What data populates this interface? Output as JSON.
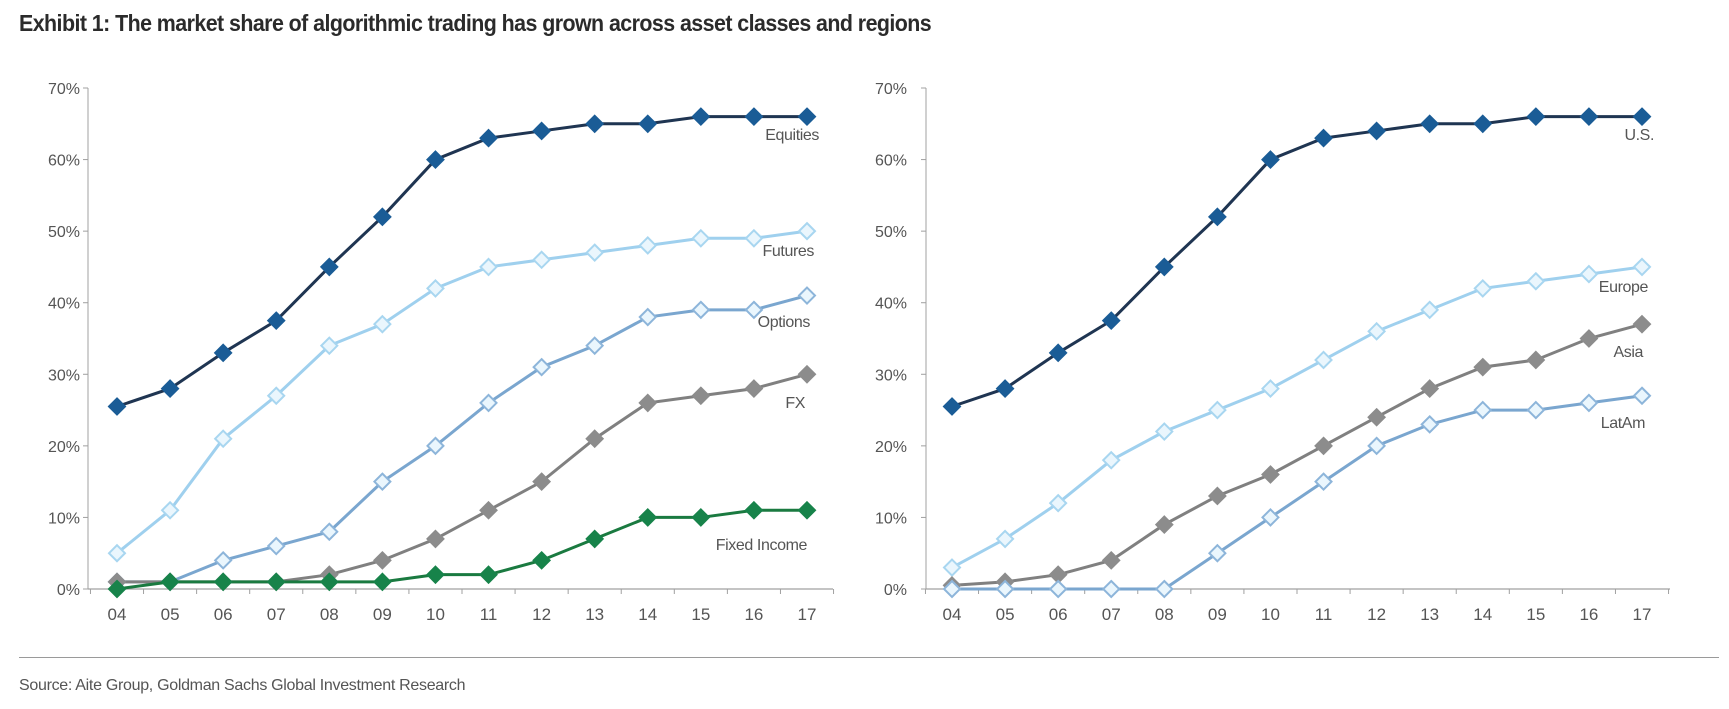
{
  "title": "Exhibit 1: The market share of algorithmic trading has grown across asset classes and regions",
  "source": "Source: Aite Group, Goldman Sachs Global Investment Research",
  "chart_data": [
    {
      "type": "line",
      "title": "",
      "xlabel": "",
      "ylabel": "",
      "categories": [
        "04",
        "05",
        "06",
        "07",
        "08",
        "09",
        "10",
        "11",
        "12",
        "13",
        "14",
        "15",
        "16",
        "17"
      ],
      "ylim": [
        0,
        70
      ],
      "yticks": [
        "0%",
        "10%",
        "20%",
        "30%",
        "40%",
        "50%",
        "60%",
        "70%"
      ],
      "grid": false,
      "series": [
        {
          "name": "Equities",
          "color": "#1a5c96",
          "line": "#1f3552",
          "marker": "filled",
          "values": [
            25.5,
            28,
            33,
            37.5,
            45,
            52,
            60,
            63,
            64,
            65,
            65,
            66,
            66,
            66
          ]
        },
        {
          "name": "Futures",
          "color": "#a8d6f0",
          "line": "#9fd0ee",
          "marker": "hollow",
          "values": [
            5,
            11,
            21,
            27,
            34,
            37,
            42,
            45,
            46,
            47,
            48,
            49,
            49,
            50
          ]
        },
        {
          "name": "Options",
          "color": "#8db5da",
          "line": "#7aa6cf",
          "marker": "hollow",
          "values": [
            1,
            1,
            4,
            6,
            8,
            15,
            20,
            26,
            31,
            34,
            38,
            39,
            39,
            41
          ]
        },
        {
          "name": "FX",
          "color": "#8c8c8c",
          "line": "#808080",
          "marker": "filled",
          "values": [
            1,
            1,
            1,
            1,
            2,
            4,
            7,
            11,
            15,
            21,
            26,
            27,
            28,
            30
          ]
        },
        {
          "name": "Fixed Income",
          "color": "#17834a",
          "line": "#1a7a40",
          "marker": "filled",
          "values": [
            0,
            1,
            1,
            1,
            1,
            1,
            2,
            2,
            4,
            7,
            10,
            10,
            11,
            11
          ]
        }
      ]
    },
    {
      "type": "line",
      "title": "",
      "xlabel": "",
      "ylabel": "",
      "categories": [
        "04",
        "05",
        "06",
        "07",
        "08",
        "09",
        "10",
        "11",
        "12",
        "13",
        "14",
        "15",
        "16",
        "17"
      ],
      "ylim": [
        0,
        70
      ],
      "yticks": [
        "0%",
        "10%",
        "20%",
        "30%",
        "40%",
        "50%",
        "60%",
        "70%"
      ],
      "grid": false,
      "series": [
        {
          "name": "U.S.",
          "color": "#1a5c96",
          "line": "#1f3552",
          "marker": "filled",
          "values": [
            25.5,
            28,
            33,
            37.5,
            45,
            52,
            60,
            63,
            64,
            65,
            65,
            66,
            66,
            66
          ]
        },
        {
          "name": "Europe",
          "color": "#a8d6f0",
          "line": "#9fd0ee",
          "marker": "hollow",
          "values": [
            3,
            7,
            12,
            18,
            22,
            25,
            28,
            32,
            36,
            39,
            42,
            43,
            44,
            45
          ]
        },
        {
          "name": "Asia",
          "color": "#8c8c8c",
          "line": "#808080",
          "marker": "filled",
          "values": [
            0.5,
            1,
            2,
            4,
            9,
            13,
            16,
            20,
            24,
            28,
            31,
            32,
            35,
            37
          ]
        },
        {
          "name": "LatAm",
          "color": "#8db5da",
          "line": "#7aa6cf",
          "marker": "hollow",
          "values": [
            0,
            0,
            0,
            0,
            0,
            5,
            10,
            15,
            20,
            23,
            25,
            25,
            26,
            27
          ]
        }
      ]
    }
  ]
}
